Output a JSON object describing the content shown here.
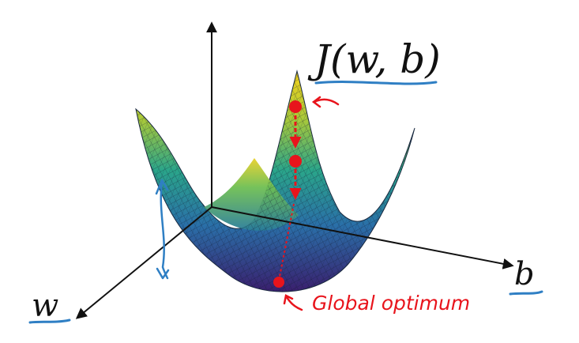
{
  "cost_label": "J(w, b)",
  "axis_w_label": "w",
  "axis_b_label": "b",
  "annotation_global": "Global optimum",
  "colors": {
    "axis": "#111111",
    "annotation_red": "#e8141c",
    "annotation_blue": "#2f7fc4",
    "surface_low": "#3a1f6e",
    "surface_mid": "#1fa08a",
    "surface_high": "#f5d21a"
  }
}
